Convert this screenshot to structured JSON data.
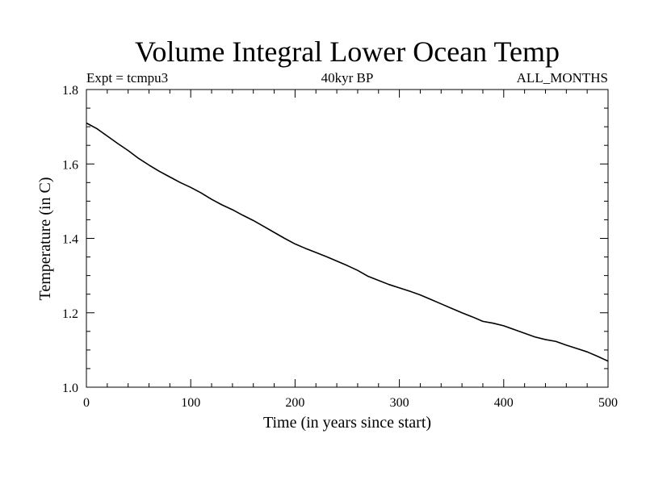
{
  "chart_data": {
    "type": "line",
    "title": "Volume Integral Lower Ocean Temp",
    "subtitle_left": "Expt = tcmpu3",
    "subtitle_center": "40kyr BP",
    "subtitle_right": "ALL_MONTHS",
    "xlabel": "Time (in years since start)",
    "ylabel": "Temperature (in C)",
    "xlim": [
      0,
      500
    ],
    "ylim": [
      1.0,
      1.8
    ],
    "x_ticks": [
      0,
      100,
      200,
      300,
      400,
      500
    ],
    "x_tick_labels": [
      "0",
      "100",
      "200",
      "300",
      "400",
      "500"
    ],
    "y_ticks": [
      1.0,
      1.2,
      1.4,
      1.6,
      1.8
    ],
    "y_tick_labels": [
      "1.0",
      "1.2",
      "1.4",
      "1.6",
      "1.8"
    ],
    "grid": false,
    "series": [
      {
        "color": "#000000",
        "x": [
          0,
          10,
          20,
          30,
          40,
          50,
          60,
          70,
          80,
          90,
          100,
          110,
          120,
          130,
          140,
          150,
          160,
          170,
          180,
          190,
          200,
          210,
          220,
          230,
          240,
          250,
          260,
          270,
          280,
          290,
          300,
          310,
          320,
          330,
          340,
          350,
          360,
          370,
          380,
          390,
          400,
          410,
          420,
          430,
          440,
          450,
          460,
          470,
          480,
          490,
          500
        ],
        "y": [
          1.71,
          1.695,
          1.675,
          1.655,
          1.636,
          1.615,
          1.597,
          1.58,
          1.565,
          1.55,
          1.537,
          1.522,
          1.505,
          1.49,
          1.477,
          1.462,
          1.448,
          1.432,
          1.416,
          1.4,
          1.385,
          1.373,
          1.362,
          1.351,
          1.339,
          1.327,
          1.314,
          1.298,
          1.287,
          1.276,
          1.267,
          1.258,
          1.248,
          1.236,
          1.224,
          1.212,
          1.2,
          1.189,
          1.177,
          1.172,
          1.165,
          1.155,
          1.145,
          1.135,
          1.128,
          1.123,
          1.113,
          1.104,
          1.095,
          1.083,
          1.07
        ]
      }
    ]
  }
}
